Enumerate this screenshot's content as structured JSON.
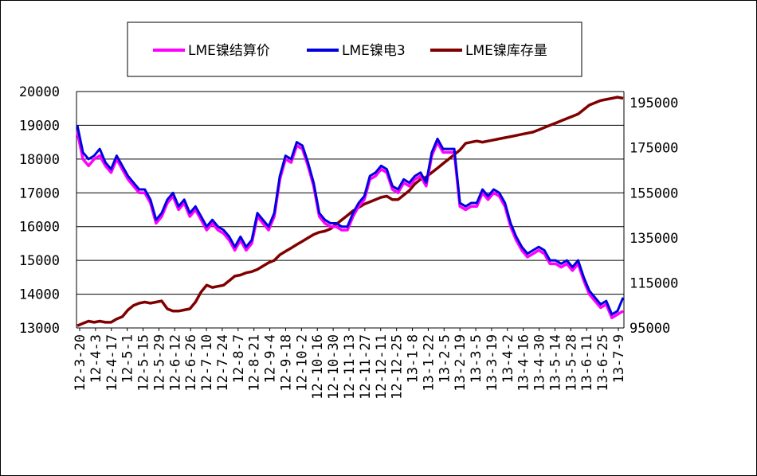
{
  "chart_data": {
    "type": "line",
    "title": "",
    "legend": {
      "placement": "top",
      "entries": [
        "LME镍结算价",
        "LME镍电3",
        "LME镍库存量"
      ]
    },
    "colors": {
      "settlement": "#ff00ff",
      "three_month": "#0000e0",
      "stock": "#800000"
    },
    "grid": true,
    "left_axis": {
      "ylim": [
        13000,
        20000
      ],
      "ticks": [
        "20000",
        "19000",
        "18000",
        "17000",
        "16000",
        "15000",
        "14000",
        "13000"
      ]
    },
    "right_axis": {
      "ylim": [
        95000,
        200000
      ],
      "ticks": [
        "195000",
        "175000",
        "155000",
        "135000",
        "115000",
        "95000"
      ]
    },
    "x_tick_labels": [
      "12-3-20",
      "12-4-3",
      "12-4-17",
      "12-5-1",
      "12-5-15",
      "12-5-29",
      "12-6-12",
      "12-6-26",
      "12-7-10",
      "12-7-24",
      "12-8-7",
      "12-8-21",
      "12-9-4",
      "12-9-18",
      "12-10-2",
      "12-10-16",
      "12-10-30",
      "12-11-13",
      "12-11-27",
      "12-12-11",
      "12-12-25",
      "13-1-8",
      "13-1-22",
      "13-2-5",
      "13-2-19",
      "13-3-5",
      "13-3-19",
      "13-4-2",
      "13-4-16",
      "13-4-30",
      "13-5-14",
      "13-5-28",
      "13-6-11",
      "13-6-25",
      "13-7-9"
    ],
    "series": [
      {
        "name": "LME镍结算价",
        "axis": "left",
        "values": [
          18800,
          18000,
          17800,
          18000,
          18100,
          17800,
          17600,
          18000,
          17700,
          17400,
          17200,
          17000,
          17000,
          16700,
          16100,
          16300,
          16700,
          16900,
          16500,
          16700,
          16300,
          16500,
          16200,
          15900,
          16100,
          15900,
          15800,
          15600,
          15300,
          15600,
          15300,
          15500,
          16300,
          16100,
          15900,
          16300,
          17400,
          18000,
          17900,
          18400,
          18300,
          17800,
          17200,
          16300,
          16100,
          16000,
          16000,
          15900,
          15900,
          16300,
          16600,
          16800,
          17400,
          17500,
          17700,
          17600,
          17100,
          17000,
          17300,
          17200,
          17400,
          17500,
          17200,
          18100,
          18500,
          18200,
          18200,
          18200,
          16600,
          16500,
          16600,
          16600,
          17000,
          16800,
          17000,
          16900,
          16600,
          16000,
          15600,
          15300,
          15100,
          15200,
          15300,
          15200,
          14900,
          14900,
          14800,
          14900,
          14700,
          14900,
          14400,
          14000,
          13800,
          13600,
          13700,
          13300,
          13400,
          13500
        ]
      },
      {
        "name": "LME镍电3",
        "axis": "left",
        "values": [
          19000,
          18200,
          18000,
          18100,
          18300,
          17900,
          17700,
          18100,
          17800,
          17500,
          17300,
          17100,
          17100,
          16800,
          16200,
          16400,
          16800,
          17000,
          16600,
          16800,
          16400,
          16600,
          16300,
          16000,
          16200,
          16000,
          15900,
          15700,
          15400,
          15700,
          15400,
          15600,
          16400,
          16200,
          16000,
          16400,
          17500,
          18100,
          18000,
          18500,
          18400,
          17900,
          17300,
          16400,
          16200,
          16100,
          16100,
          16000,
          16000,
          16400,
          16700,
          16900,
          17500,
          17600,
          17800,
          17700,
          17200,
          17100,
          17400,
          17300,
          17500,
          17600,
          17300,
          18200,
          18600,
          18300,
          18300,
          18300,
          16700,
          16600,
          16700,
          16700,
          17100,
          16900,
          17100,
          17000,
          16700,
          16100,
          15700,
          15400,
          15200,
          15300,
          15400,
          15300,
          15000,
          15000,
          14900,
          15000,
          14800,
          15000,
          14500,
          14100,
          13900,
          13700,
          13800,
          13400,
          13500,
          13900
        ]
      },
      {
        "name": "LME镍库存量",
        "axis": "right",
        "values": [
          96000,
          97000,
          98000,
          97500,
          98000,
          97500,
          97500,
          99000,
          100000,
          103000,
          105000,
          106000,
          106500,
          106000,
          106500,
          107000,
          103500,
          102500,
          102500,
          103000,
          103500,
          106500,
          111000,
          114000,
          113000,
          113500,
          114000,
          116000,
          118000,
          118500,
          119500,
          120000,
          121000,
          122500,
          124000,
          125000,
          127500,
          129000,
          130500,
          132000,
          133500,
          135000,
          136500,
          137500,
          138000,
          139000,
          141000,
          143000,
          145000,
          147000,
          148500,
          150000,
          151000,
          152000,
          153000,
          153500,
          152000,
          152000,
          154000,
          156000,
          159000,
          161000,
          162000,
          164000,
          166000,
          168000,
          170000,
          172000,
          174000,
          177000,
          177500,
          178000,
          177500,
          178000,
          178500,
          179000,
          179500,
          180000,
          180500,
          181000,
          181500,
          182000,
          183000,
          184000,
          185000,
          186000,
          187000,
          188000,
          189000,
          190000,
          192000,
          194000,
          195000,
          196000,
          196500,
          197000,
          197500,
          197000
        ]
      }
    ]
  }
}
